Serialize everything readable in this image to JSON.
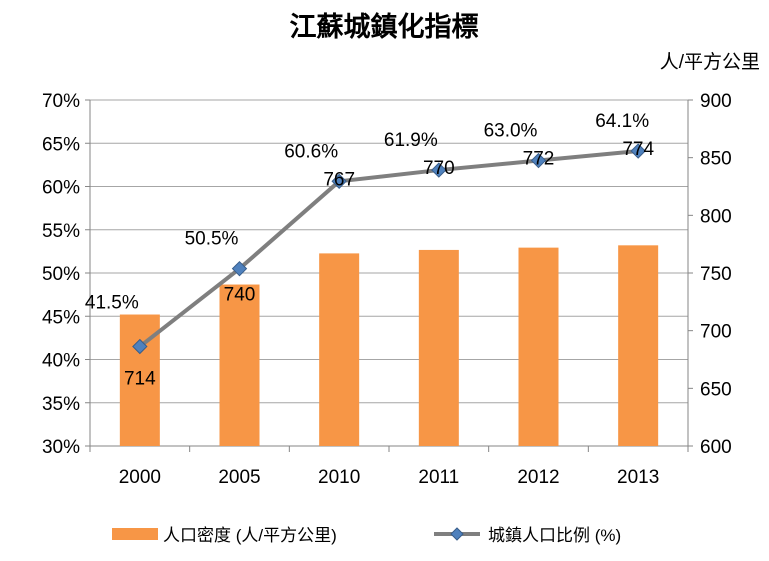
{
  "chart_data": {
    "type": "bar+line",
    "title": "江蘇城鎮化指標",
    "categories": [
      "2000",
      "2005",
      "2010",
      "2011",
      "2012",
      "2013"
    ],
    "series": [
      {
        "name": "人口密度 (人/平方公里)",
        "type": "bar",
        "axis": "right",
        "values": [
          714,
          740,
          767,
          770,
          772,
          774
        ],
        "labels": [
          "714",
          "740",
          "767",
          "770",
          "772",
          "774"
        ],
        "color": "#F79646"
      },
      {
        "name": "城鎮人口比例 (%)",
        "type": "line",
        "axis": "left",
        "values": [
          41.5,
          50.5,
          60.6,
          61.9,
          63.0,
          64.1
        ],
        "labels": [
          "41.5%",
          "50.5%",
          "60.6%",
          "61.9%",
          "63.0%",
          "64.1%"
        ],
        "color": "#7F7F7F",
        "marker_color": "#4F81BD"
      }
    ],
    "left_axis": {
      "ylim": [
        30,
        70
      ],
      "ticks": [
        30,
        35,
        40,
        45,
        50,
        55,
        60,
        65,
        70
      ],
      "tick_labels": [
        "30%",
        "35%",
        "40%",
        "45%",
        "50%",
        "55%",
        "60%",
        "65%",
        "70%"
      ]
    },
    "right_axis": {
      "unit_label": "人/平方公里",
      "ylim": [
        600,
        900
      ],
      "ticks": [
        600,
        650,
        700,
        750,
        800,
        850,
        900
      ],
      "tick_labels": [
        "600",
        "650",
        "700",
        "750",
        "800",
        "850",
        "900"
      ]
    },
    "grid": true,
    "legend": "bottom"
  }
}
